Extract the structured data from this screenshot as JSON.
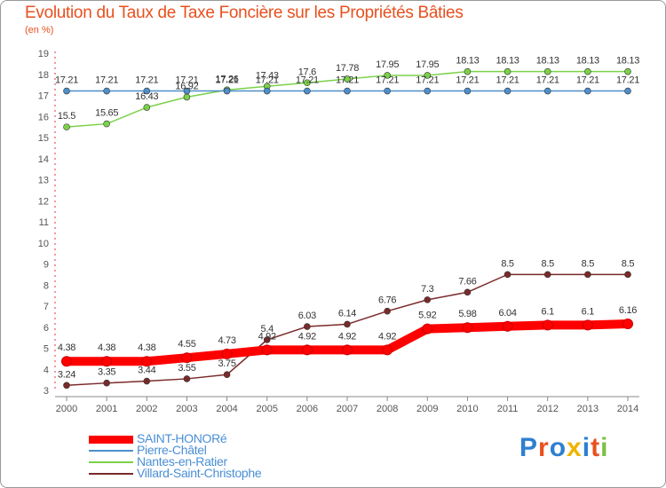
{
  "chart_data": {
    "type": "line",
    "title": "Evolution du Taux de Taxe Foncière sur les Propriétés Bâties",
    "unit_label": "(en %)",
    "xlabel": "",
    "ylabel": "",
    "ylim": [
      3,
      19
    ],
    "y_ticks": [
      "3",
      "4",
      "5",
      "6",
      "7",
      "8",
      "9",
      "10",
      "11",
      "12",
      "13",
      "14",
      "15",
      "16",
      "17",
      "18",
      "19"
    ],
    "categories": [
      "2000",
      "2001",
      "2002",
      "2003",
      "2004",
      "2005",
      "2006",
      "2007",
      "2008",
      "2009",
      "2010",
      "2011",
      "2012",
      "2013",
      "2014"
    ],
    "series": [
      {
        "name": "SAINT-HONORé",
        "color": "#ff0000",
        "values": [
          4.38,
          4.38,
          4.38,
          4.55,
          4.73,
          4.92,
          4.92,
          4.92,
          4.92,
          5.92,
          5.98,
          6.04,
          6.1,
          6.1,
          6.16
        ],
        "labels": [
          "4.38",
          "4.38",
          "4.38",
          "4.55",
          "4.73",
          "4.92",
          "4.92",
          "4.92",
          "4.92",
          "5.92",
          "5.98",
          "6.04",
          "6.1",
          "6.1",
          "6.16"
        ]
      },
      {
        "name": "Pierre-Châtel",
        "color": "#4e8fcb",
        "values": [
          17.21,
          17.21,
          17.21,
          17.21,
          17.21,
          17.21,
          17.21,
          17.21,
          17.21,
          17.21,
          17.21,
          17.21,
          17.21,
          17.21,
          17.21
        ],
        "labels": [
          "17.21",
          "17.21",
          "17.21",
          "17.21",
          "17.21",
          "17.21",
          "17.21",
          "17.21",
          "17.21",
          "17.21",
          "17.21",
          "17.21",
          "17.21",
          "17.21",
          "17.21"
        ]
      },
      {
        "name": "Nantes-en-Ratier",
        "color": "#7bd14a",
        "values": [
          15.5,
          15.65,
          16.43,
          16.92,
          17.26,
          17.43,
          17.6,
          17.78,
          17.95,
          17.95,
          18.13,
          18.13,
          18.13,
          18.13,
          18.13
        ],
        "labels": [
          "15.5",
          "15.65",
          "16.43",
          "16.92",
          "17.26",
          "17.43",
          "17.6",
          "17.78",
          "17.95",
          "17.95",
          "18.13",
          "18.13",
          "18.13",
          "18.13",
          "18.13"
        ]
      },
      {
        "name": "Villard-Saint-Christophe",
        "color": "#7a2a2a",
        "values": [
          3.24,
          3.35,
          3.44,
          3.55,
          3.75,
          5.4,
          6.03,
          6.14,
          6.76,
          7.3,
          7.66,
          8.5,
          8.5,
          8.5,
          8.5
        ],
        "labels": [
          "3.24",
          "3.35",
          "3.44",
          "3.55",
          "3.75",
          "5.4",
          "6.03",
          "6.14",
          "6.76",
          "7.3",
          "7.66",
          "8.5",
          "8.5",
          "8.5",
          "8.5"
        ]
      }
    ],
    "legend_position": "bottom-left",
    "grid": false
  },
  "logo": {
    "text": "Proxiti"
  },
  "colors": {
    "title": "#e8501e",
    "axis": "#555555",
    "legend_text": "#4a8fd6"
  }
}
